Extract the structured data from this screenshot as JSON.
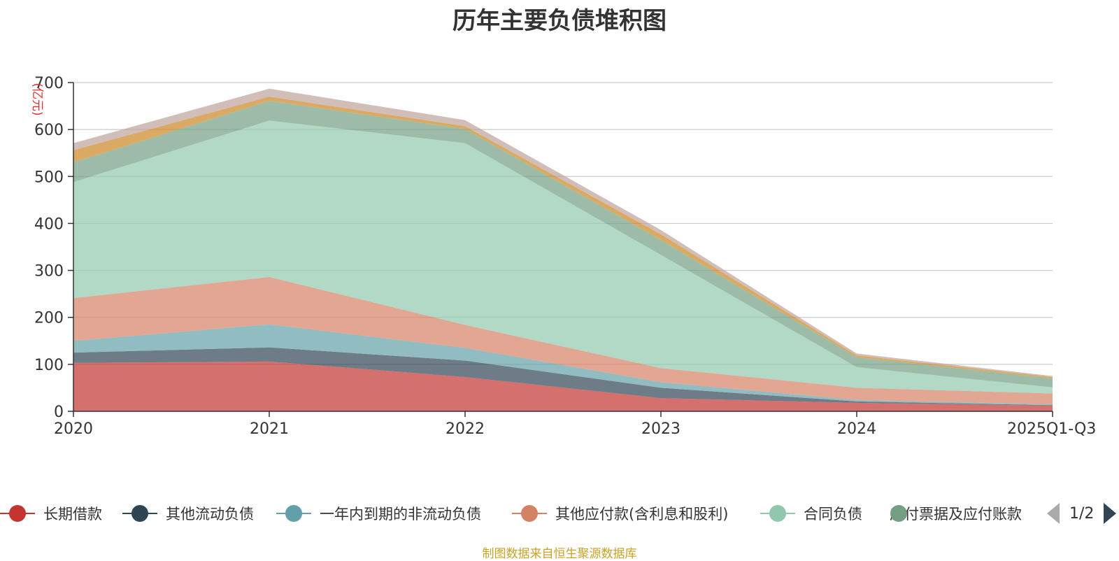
{
  "title": "历年主要负债堆积图",
  "source": "制图数据来自恒生聚源数据库",
  "chart_data": {
    "type": "area",
    "stacked": true,
    "title": "历年主要负债堆积图",
    "ylabel": "(亿元)",
    "xlabel": "",
    "categories": [
      "2020",
      "2021",
      "2022",
      "2023",
      "2024",
      "2025Q1-Q3"
    ],
    "ylim": [
      0,
      700
    ],
    "yticks": [
      0,
      100,
      200,
      300,
      400,
      500,
      600,
      700
    ],
    "grid": true,
    "legend_position": "bottom",
    "series": [
      {
        "name": "长期借款",
        "color": "#c23531",
        "values": [
          103,
          106,
          73,
          28,
          18,
          12
        ]
      },
      {
        "name": "其他流动负债",
        "color": "#2f4554",
        "values": [
          22,
          30,
          35,
          22,
          3,
          1
        ]
      },
      {
        "name": "一年内到期的非流动负债",
        "color": "#61a0a8",
        "values": [
          25,
          49,
          27,
          12,
          3,
          2
        ]
      },
      {
        "name": "其他应付款(含利息和股利)",
        "color": "#d48265",
        "values": [
          91,
          101,
          49,
          30,
          26,
          23
        ]
      },
      {
        "name": "合同负债",
        "color": "#91c7ae",
        "values": [
          247,
          333,
          387,
          241,
          44,
          13
        ]
      },
      {
        "name": "应付票据及应付账款",
        "color": "#749f83",
        "values": [
          42,
          42,
          30,
          32,
          21,
          19
        ]
      },
      {
        "values": [
          26,
          9,
          6,
          12,
          4,
          3
        ],
        "color": "#ca8622"
      },
      {
        "values": [
          15,
          17,
          13,
          9,
          4,
          2
        ],
        "color": "#bda29a"
      }
    ]
  },
  "legend": {
    "page_text": "1/2",
    "visible_items": [
      {
        "label": "长期借款",
        "color": "#c23531"
      },
      {
        "label": "其他流动负债",
        "color": "#2f4554"
      },
      {
        "label": "一年内到期的非流动负债",
        "color": "#61a0a8"
      },
      {
        "label": "其他应付款(含利息和股利)",
        "color": "#d48265"
      },
      {
        "label": "合同负债",
        "color": "#91c7ae"
      },
      {
        "label": "应付票据及应付账款",
        "color": "#749f83"
      }
    ]
  }
}
